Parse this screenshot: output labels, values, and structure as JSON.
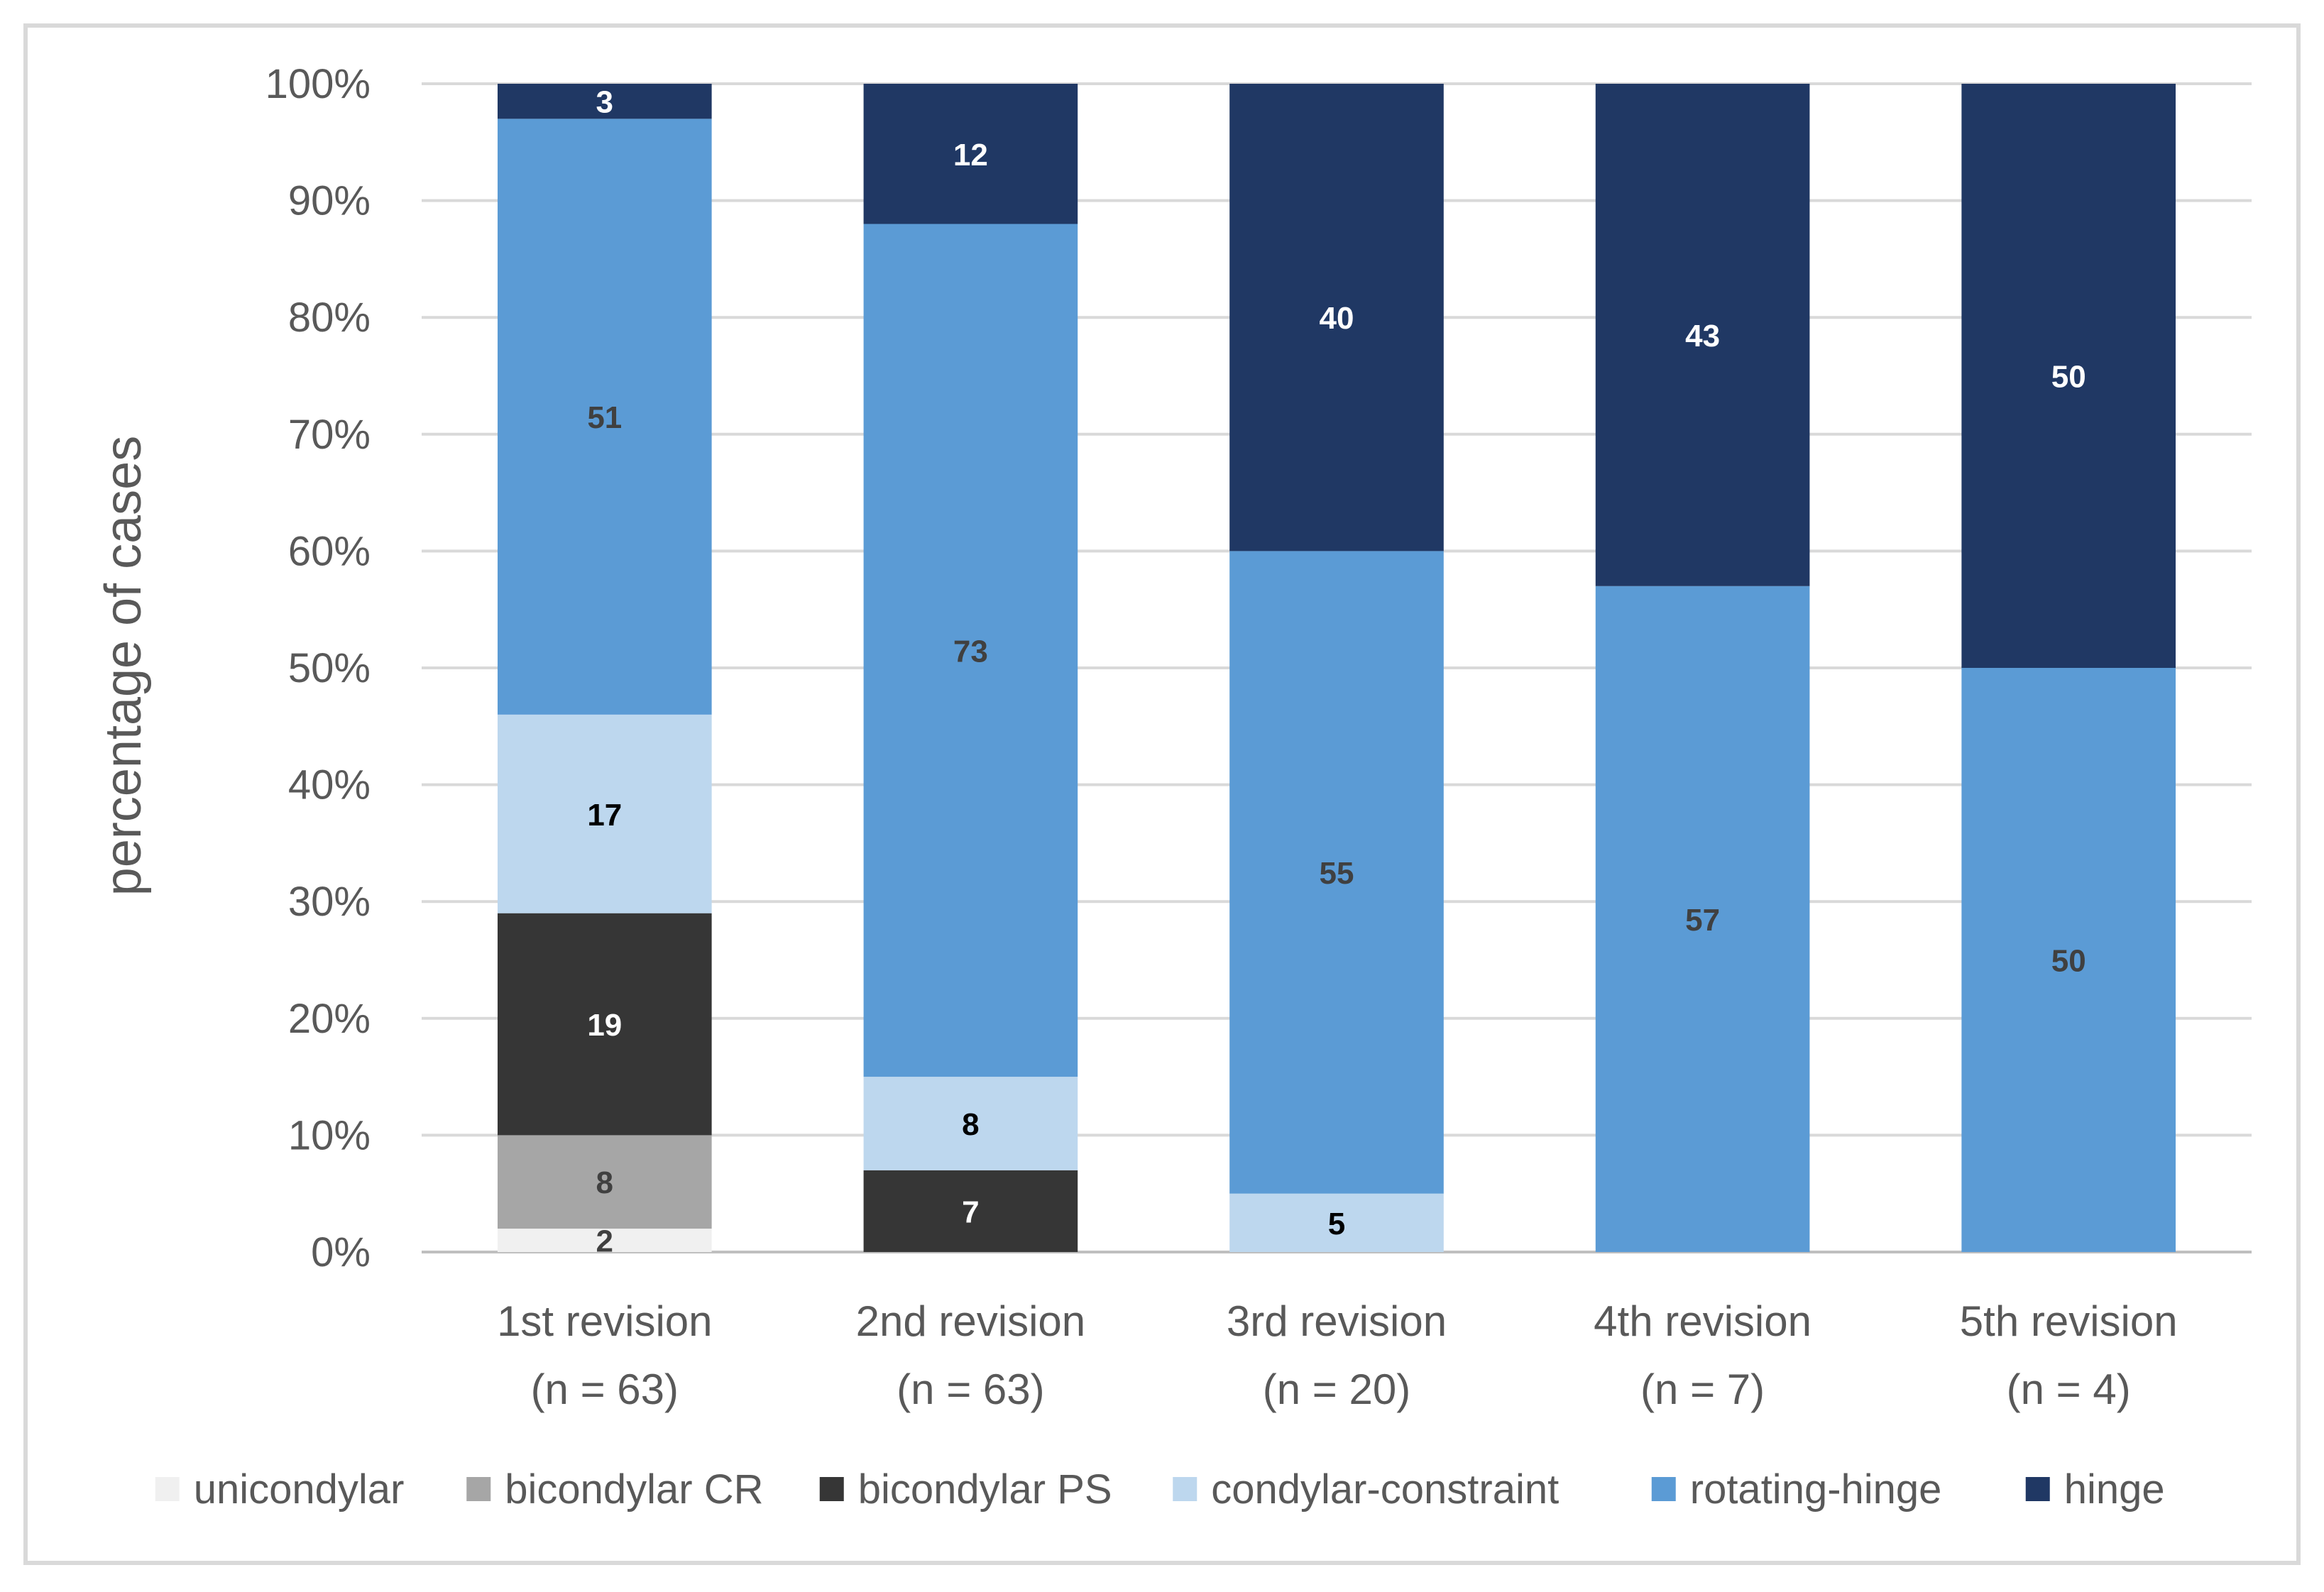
{
  "chart_data": {
    "type": "bar",
    "stacked": true,
    "orientation": "vertical",
    "normalized": true,
    "title": "",
    "xlabel": "",
    "ylabel": "percentage of cases",
    "ylim": [
      0,
      100
    ],
    "y_ticks": [
      "0%",
      "10%",
      "20%",
      "30%",
      "40%",
      "50%",
      "60%",
      "70%",
      "80%",
      "90%",
      "100%"
    ],
    "grid": true,
    "legend_position": "bottom",
    "categories": [
      {
        "line1": "1st revision",
        "line2": "(n = 63)"
      },
      {
        "line1": "2nd revision",
        "line2": "(n = 63)"
      },
      {
        "line1": "3rd revision",
        "line2": "(n = 20)"
      },
      {
        "line1": "4th revision",
        "line2": "(n = 7)"
      },
      {
        "line1": "5th revision",
        "line2": "(n = 4)"
      }
    ],
    "series": [
      {
        "name": "unicondylar",
        "color": "#F0F0F0",
        "label_color": "#404040",
        "values": [
          2,
          0,
          0,
          0,
          0
        ]
      },
      {
        "name": "bicondylar CR",
        "color": "#A6A6A6",
        "label_color": "#404040",
        "values": [
          8,
          0,
          0,
          0,
          0
        ]
      },
      {
        "name": "bicondylar PS",
        "color": "#363636",
        "label_color": "#FFFFFF",
        "values": [
          19,
          7,
          0,
          0,
          0
        ]
      },
      {
        "name": "condylar-constraint",
        "color": "#BDD7EE",
        "label_color": "#000000",
        "values": [
          17,
          8,
          5,
          0,
          0
        ]
      },
      {
        "name": "rotating-hinge",
        "color": "#5B9BD5",
        "label_color": "#404040",
        "values": [
          51,
          73,
          55,
          57,
          50
        ]
      },
      {
        "name": "hinge",
        "color": "#203864",
        "label_color": "#FFFFFF",
        "values": [
          3,
          12,
          40,
          43,
          50
        ]
      }
    ]
  }
}
